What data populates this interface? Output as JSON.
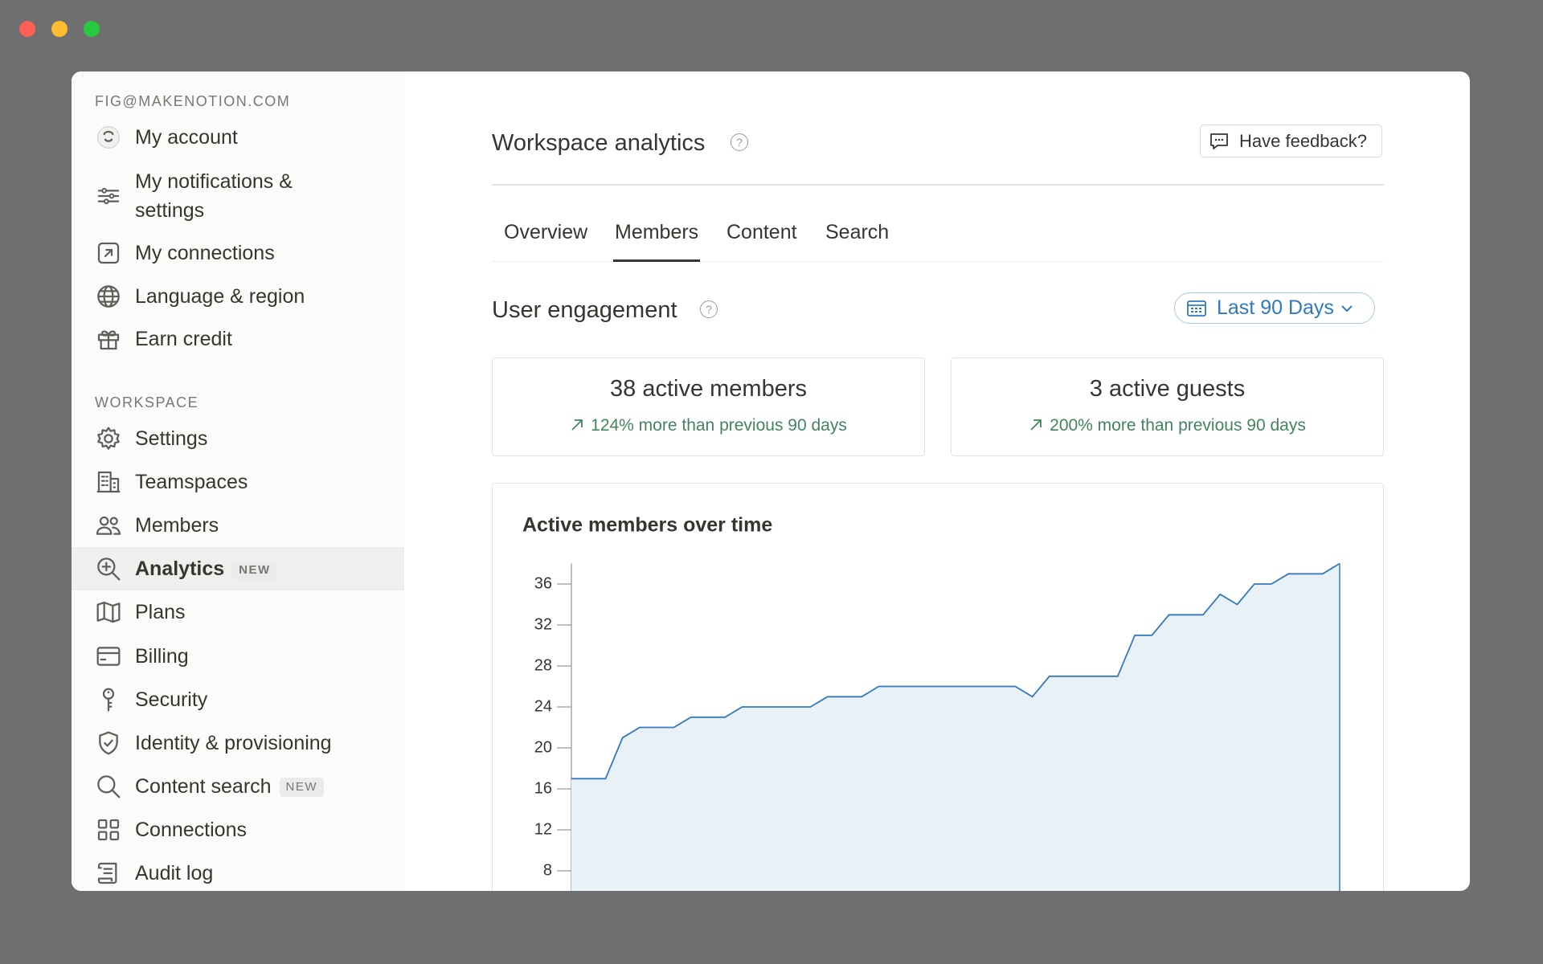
{
  "sidebar": {
    "account_email": "FIG@MAKENOTION.COM",
    "account_items": [
      "My account",
      "My notifications & settings",
      "My connections",
      "Language & region",
      "Earn credit"
    ],
    "workspace_heading": "WORKSPACE",
    "workspace_items": [
      {
        "label": "Settings"
      },
      {
        "label": "Teamspaces"
      },
      {
        "label": "Members"
      },
      {
        "label": "Analytics",
        "badge": "NEW"
      },
      {
        "label": "Plans"
      },
      {
        "label": "Billing"
      },
      {
        "label": "Security"
      },
      {
        "label": "Identity & provisioning"
      },
      {
        "label": "Content search",
        "badge": "NEW"
      },
      {
        "label": "Connections"
      },
      {
        "label": "Audit log"
      }
    ],
    "selected_index": 3
  },
  "header": {
    "title": "Workspace analytics",
    "feedback_button": "Have feedback?"
  },
  "tabs": {
    "items": [
      "Overview",
      "Members",
      "Content",
      "Search"
    ],
    "selected_index": 1
  },
  "engagement": {
    "title": "User engagement",
    "date_range": "Last 90 Days",
    "cards": [
      {
        "title": "38 active members",
        "change": "124% more than previous 90 days"
      },
      {
        "title": "3 active guests",
        "change": "200% more than previous 90 days"
      }
    ]
  },
  "chart_data": {
    "type": "line",
    "title": "Active members over time",
    "values": [
      17,
      17,
      17,
      21,
      22,
      22,
      22,
      23,
      23,
      23,
      24,
      24,
      24,
      24,
      24,
      25,
      25,
      25,
      26,
      26,
      26,
      26,
      26,
      26,
      26,
      26,
      26,
      25,
      27,
      27,
      27,
      27,
      27,
      31,
      31,
      33,
      33,
      33,
      35,
      34,
      36,
      36,
      37,
      37,
      37,
      38
    ],
    "ylim": [
      0,
      38
    ],
    "yticks": [
      8,
      12,
      16,
      20,
      24,
      28,
      32,
      36
    ],
    "color": "#3478c0",
    "fill": "#e8f2f6"
  }
}
